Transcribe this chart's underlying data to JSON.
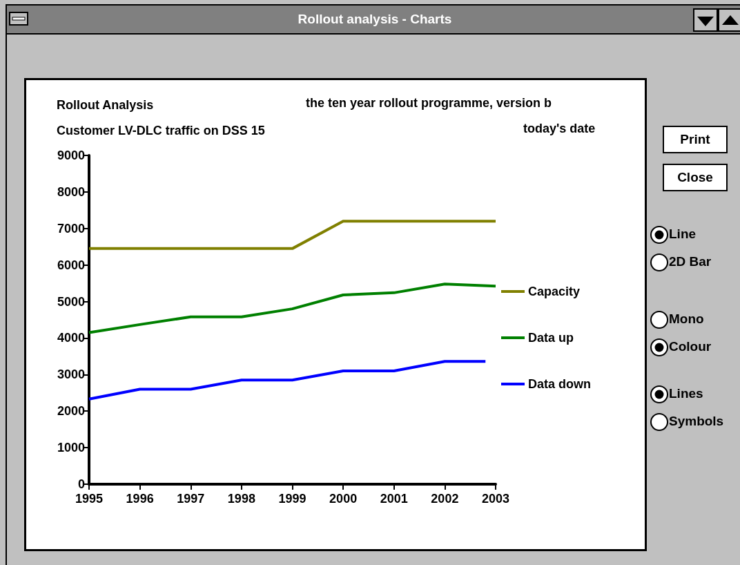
{
  "chart_data": {
    "type": "line",
    "title": "Rollout Analysis",
    "subtitle": "Customer LV-DLC traffic on DSS 15",
    "annotations": [
      "Rollout analysis - Charts",
      "the ten year rollout programme, version b",
      "today's date",
      "Print",
      "Close",
      "Line",
      "2D Bar",
      "Mono",
      "Colour",
      "Lines",
      "Symbols"
    ],
    "x": [
      1995,
      1996,
      1997,
      1998,
      1999,
      2000,
      2001,
      2002,
      2003
    ],
    "series": [
      {
        "name": "Capacity",
        "color": "#808000",
        "values": [
          6450,
          6450,
          6450,
          6450,
          6450,
          7200,
          7200,
          7200,
          7200
        ]
      },
      {
        "name": "Data up",
        "color": "#008000",
        "values": [
          4150,
          4370,
          4580,
          4580,
          4800,
          5180,
          5240,
          5480,
          5420
        ]
      },
      {
        "name": "Data down",
        "color": "#0000ff",
        "x": [
          1995,
          1996,
          1997,
          1998,
          1999,
          2000,
          2001,
          2002,
          2002.8
        ],
        "values": [
          2330,
          2600,
          2600,
          2850,
          2850,
          3100,
          3100,
          3360,
          3360
        ]
      }
    ],
    "xlim": [
      1995,
      2003
    ],
    "xticks": [
      1995,
      1996,
      1997,
      1998,
      1999,
      2000,
      2001,
      2002,
      2003
    ],
    "ylim": [
      0,
      9000
    ],
    "yticks": [
      0,
      1000,
      2000,
      3000,
      4000,
      5000,
      6000,
      7000,
      8000,
      9000
    ],
    "grid": false,
    "legend": "right",
    "marker": "none",
    "line_style": "solid"
  }
}
